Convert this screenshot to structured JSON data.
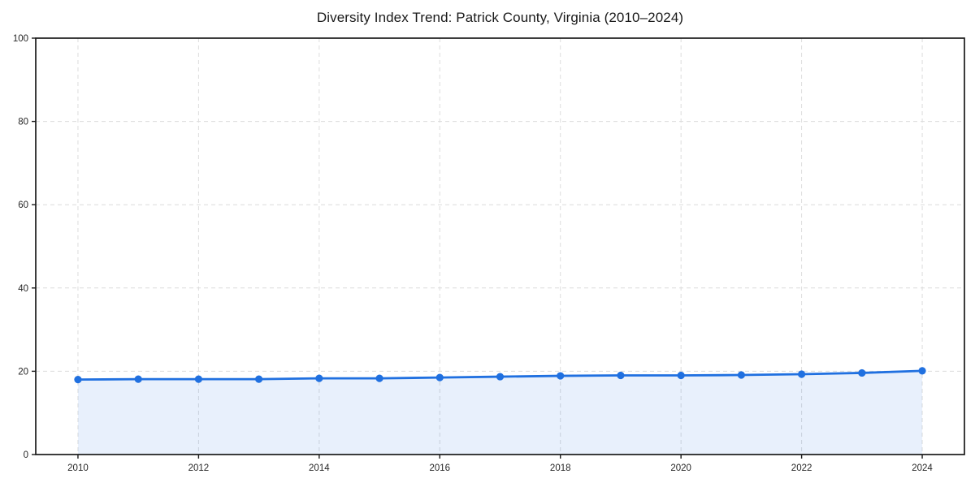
{
  "chart_data": {
    "type": "line",
    "title": "Diversity Index Trend: Patrick County, Virginia (2010–2024)",
    "x": [
      2010,
      2011,
      2012,
      2013,
      2014,
      2015,
      2016,
      2017,
      2018,
      2019,
      2020,
      2021,
      2022,
      2023,
      2024
    ],
    "series": [
      {
        "name": "Diversity Index",
        "values": [
          18.0,
          18.1,
          18.1,
          18.1,
          18.3,
          18.3,
          18.5,
          18.7,
          18.9,
          19.0,
          19.0,
          19.1,
          19.3,
          19.6,
          20.1
        ]
      }
    ],
    "xlabel": "",
    "ylabel": "",
    "ylim": [
      0,
      100
    ],
    "xticks": [
      "2010",
      "2012",
      "2014",
      "2016",
      "2018",
      "2020",
      "2022",
      "2024"
    ],
    "yticks": [
      0,
      20,
      40,
      60,
      80,
      100
    ],
    "grid": true,
    "grid_style": "dashed",
    "legend": "none",
    "area_fill": true,
    "marker": "circle",
    "colors": {
      "line": "#2070e0",
      "marker": "#2070e0",
      "area": "rgba(32, 112, 224, 0.10)",
      "grid": "#dcdcdc",
      "axis": "#1a1a1a",
      "tick_label": "#262626",
      "title": "#1a1a1a"
    }
  }
}
